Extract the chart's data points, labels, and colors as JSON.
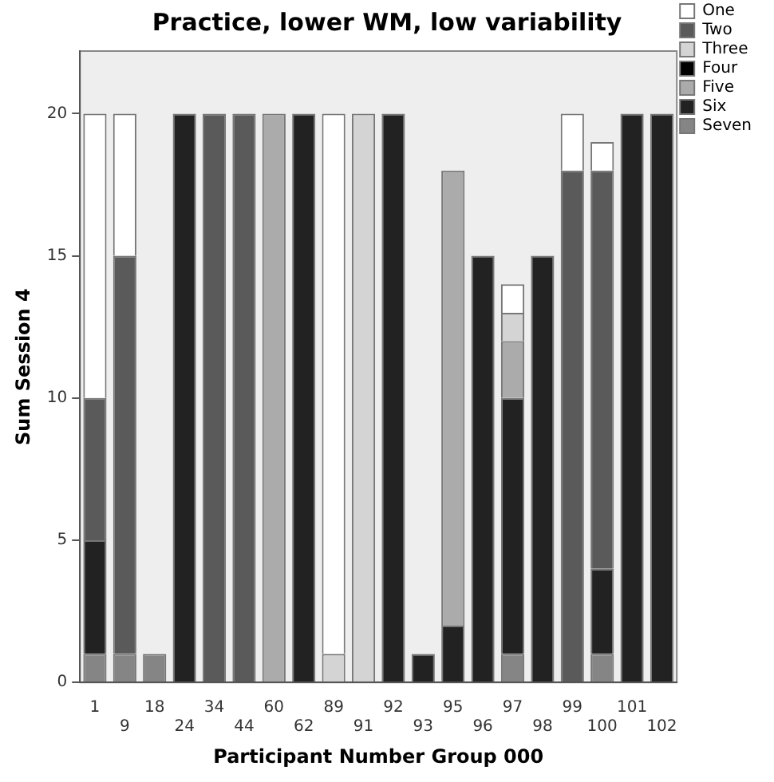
{
  "chart_data": {
    "type": "bar",
    "title": "Practice, lower WM, low variability",
    "xlabel": "Participant Number Group 000",
    "ylabel": "Sum Session 4",
    "categories": [
      "1",
      "9",
      "18",
      "24",
      "34",
      "44",
      "60",
      "62",
      "89",
      "91",
      "92",
      "93",
      "95",
      "96",
      "97",
      "98",
      "99",
      "100",
      "101",
      "102"
    ],
    "stacked": true,
    "ylim": [
      0,
      22.2
    ],
    "yticks": [
      0,
      5,
      10,
      15,
      20
    ],
    "grid": false,
    "legend": "top right",
    "series": [
      {
        "name": "Seven",
        "color": "#858585",
        "values": [
          1,
          1,
          1,
          null,
          null,
          null,
          null,
          null,
          null,
          null,
          null,
          null,
          null,
          null,
          1,
          null,
          null,
          1,
          null,
          null
        ]
      },
      {
        "name": "Six",
        "color": "#222222",
        "values": [
          4,
          null,
          null,
          20,
          null,
          null,
          null,
          20,
          null,
          null,
          20,
          1,
          2,
          15,
          9,
          15,
          null,
          3,
          20,
          20
        ]
      },
      {
        "name": "Five",
        "color": "#ababab",
        "values": [
          null,
          null,
          null,
          null,
          null,
          null,
          20,
          null,
          null,
          null,
          null,
          null,
          16,
          null,
          2,
          null,
          null,
          null,
          null,
          null
        ]
      },
      {
        "name": "Four",
        "color": "#000000",
        "values": [
          null,
          null,
          null,
          null,
          null,
          null,
          null,
          null,
          null,
          null,
          null,
          null,
          null,
          null,
          null,
          null,
          null,
          null,
          null,
          null
        ]
      },
      {
        "name": "Three",
        "color": "#d4d4d4",
        "values": [
          null,
          null,
          null,
          null,
          null,
          null,
          null,
          null,
          1,
          20,
          null,
          null,
          null,
          null,
          1,
          null,
          null,
          null,
          null,
          null
        ]
      },
      {
        "name": "Two",
        "color": "#5a5a5a",
        "values": [
          5,
          14,
          null,
          null,
          20,
          20,
          null,
          null,
          null,
          null,
          null,
          null,
          null,
          null,
          null,
          null,
          18,
          14,
          null,
          null
        ]
      },
      {
        "name": "One",
        "color": "#ffffff",
        "values": [
          10,
          5,
          null,
          null,
          null,
          null,
          null,
          null,
          19,
          null,
          null,
          null,
          null,
          null,
          1,
          null,
          2,
          1,
          null,
          null
        ]
      }
    ]
  }
}
